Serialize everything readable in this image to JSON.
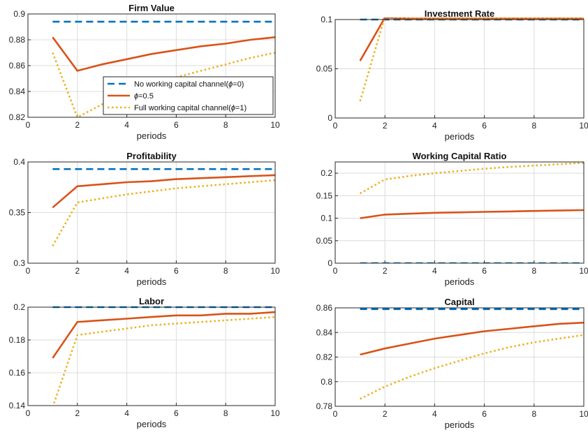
{
  "chart_data": [
    {
      "type": "line",
      "title": "Firm Value",
      "xlabel": "periods",
      "ylabel": "",
      "xlim": [
        0,
        10
      ],
      "ylim": [
        0.82,
        0.9
      ],
      "xticks": [
        "0",
        "2",
        "4",
        "6",
        "8",
        "10"
      ],
      "yticks": [
        "0.82",
        "0.84",
        "0.86",
        "0.88",
        "0.9"
      ],
      "grid": true,
      "legend": "bottom-right",
      "x": [
        1,
        2,
        3,
        4,
        5,
        6,
        7,
        8,
        9,
        10
      ],
      "series": [
        {
          "name": "No working capital channel(ϕ=0)",
          "values": [
            0.894,
            0.894,
            0.894,
            0.894,
            0.894,
            0.894,
            0.894,
            0.894,
            0.894,
            0.894
          ]
        },
        {
          "name": "ϕ=0.5",
          "values": [
            0.882,
            0.856,
            0.861,
            0.865,
            0.869,
            0.872,
            0.875,
            0.877,
            0.88,
            0.882
          ]
        },
        {
          "name": "Full working capital channel(ϕ=1)",
          "values": [
            0.87,
            0.82,
            0.83,
            0.839,
            0.846,
            0.851,
            0.856,
            0.861,
            0.866,
            0.87
          ]
        }
      ]
    },
    {
      "type": "line",
      "title": "Investment Rate",
      "xlabel": "periods",
      "ylabel": "",
      "xlim": [
        0,
        10
      ],
      "ylim": [
        0,
        0.1
      ],
      "xticks": [
        "0",
        "2",
        "4",
        "6",
        "8",
        "10"
      ],
      "yticks": [
        "0",
        "0.05",
        "0.1"
      ],
      "grid": true,
      "x": [
        1,
        2,
        3,
        4,
        5,
        6,
        7,
        8,
        9,
        10
      ],
      "series": [
        {
          "name": "No working capital channel(ϕ=0)",
          "values": [
            0.1,
            0.1,
            0.1,
            0.1,
            0.1,
            0.1,
            0.1,
            0.1,
            0.1,
            0.1
          ]
        },
        {
          "name": "ϕ=0.5",
          "values": [
            0.058,
            0.102,
            0.101,
            0.101,
            0.101,
            0.101,
            0.101,
            0.101,
            0.101,
            0.101
          ]
        },
        {
          "name": "Full working capital channel(ϕ=1)",
          "values": [
            0.017,
            0.103,
            0.102,
            0.102,
            0.102,
            0.102,
            0.102,
            0.102,
            0.102,
            0.102
          ]
        }
      ]
    },
    {
      "type": "line",
      "title": "Profitability",
      "xlabel": "periods",
      "ylabel": "",
      "xlim": [
        0,
        10
      ],
      "ylim": [
        0.3,
        0.4
      ],
      "xticks": [
        "0",
        "2",
        "4",
        "6",
        "8",
        "10"
      ],
      "yticks": [
        "0.3",
        "0.35",
        "0.4"
      ],
      "grid": true,
      "x": [
        1,
        2,
        3,
        4,
        5,
        6,
        7,
        8,
        9,
        10
      ],
      "series": [
        {
          "name": "No working capital channel(ϕ=0)",
          "values": [
            0.393,
            0.393,
            0.393,
            0.393,
            0.393,
            0.393,
            0.393,
            0.393,
            0.393,
            0.393
          ]
        },
        {
          "name": "ϕ=0.5",
          "values": [
            0.355,
            0.376,
            0.378,
            0.38,
            0.381,
            0.383,
            0.384,
            0.385,
            0.386,
            0.387
          ]
        },
        {
          "name": "Full working capital channel(ϕ=1)",
          "values": [
            0.317,
            0.36,
            0.364,
            0.368,
            0.371,
            0.374,
            0.376,
            0.378,
            0.38,
            0.382
          ]
        }
      ]
    },
    {
      "type": "line",
      "title": "Working Capital Ratio",
      "xlabel": "periods",
      "ylabel": "",
      "xlim": [
        0,
        10
      ],
      "ylim": [
        0,
        0.225
      ],
      "xticks": [
        "0",
        "2",
        "4",
        "6",
        "8",
        "10"
      ],
      "yticks": [
        "0",
        "0.05",
        "0.1",
        "0.15",
        "0.2"
      ],
      "grid": true,
      "x": [
        1,
        2,
        3,
        4,
        5,
        6,
        7,
        8,
        9,
        10
      ],
      "series": [
        {
          "name": "No working capital channel(ϕ=0)",
          "values": [
            0,
            0,
            0,
            0,
            0,
            0,
            0,
            0,
            0,
            0
          ]
        },
        {
          "name": "ϕ=0.5",
          "values": [
            0.1,
            0.108,
            0.11,
            0.112,
            0.113,
            0.114,
            0.115,
            0.116,
            0.117,
            0.118
          ]
        },
        {
          "name": "Full working capital channel(ϕ=1)",
          "values": [
            0.155,
            0.186,
            0.194,
            0.2,
            0.205,
            0.21,
            0.214,
            0.217,
            0.22,
            0.223
          ]
        }
      ]
    },
    {
      "type": "line",
      "title": "Labor",
      "xlabel": "periods",
      "ylabel": "",
      "xlim": [
        0,
        10
      ],
      "ylim": [
        0.14,
        0.2
      ],
      "xticks": [
        "0",
        "2",
        "4",
        "6",
        "8",
        "10"
      ],
      "yticks": [
        "0.14",
        "0.16",
        "0.18",
        "0.2"
      ],
      "grid": true,
      "x": [
        1,
        2,
        3,
        4,
        5,
        6,
        7,
        8,
        9,
        10
      ],
      "series": [
        {
          "name": "No working capital channel(ϕ=0)",
          "values": [
            0.2,
            0.2,
            0.2,
            0.2,
            0.2,
            0.2,
            0.2,
            0.2,
            0.2,
            0.2
          ]
        },
        {
          "name": "ϕ=0.5",
          "values": [
            0.169,
            0.191,
            0.192,
            0.193,
            0.194,
            0.195,
            0.195,
            0.196,
            0.196,
            0.197
          ]
        },
        {
          "name": "Full working capital channel(ϕ=1)",
          "values": [
            0.139,
            0.183,
            0.185,
            0.187,
            0.189,
            0.19,
            0.191,
            0.192,
            0.193,
            0.194
          ]
        }
      ]
    },
    {
      "type": "line",
      "title": "Capital",
      "xlabel": "periods",
      "ylabel": "",
      "xlim": [
        0,
        10
      ],
      "ylim": [
        0.78,
        0.86
      ],
      "xticks": [
        "0",
        "2",
        "4",
        "6",
        "8",
        "10"
      ],
      "yticks": [
        "0.78",
        "0.8",
        "0.82",
        "0.84",
        "0.86"
      ],
      "grid": true,
      "x": [
        1,
        2,
        3,
        4,
        5,
        6,
        7,
        8,
        9,
        10
      ],
      "series": [
        {
          "name": "No working capital channel(ϕ=0)",
          "values": [
            0.859,
            0.859,
            0.859,
            0.859,
            0.859,
            0.859,
            0.859,
            0.859,
            0.859,
            0.859
          ]
        },
        {
          "name": "ϕ=0.5",
          "values": [
            0.822,
            0.827,
            0.831,
            0.835,
            0.838,
            0.841,
            0.843,
            0.845,
            0.847,
            0.848
          ]
        },
        {
          "name": "Full working capital channel(ϕ=1)",
          "values": [
            0.786,
            0.796,
            0.804,
            0.811,
            0.817,
            0.823,
            0.828,
            0.832,
            0.835,
            0.838
          ]
        }
      ]
    }
  ],
  "legend": {
    "entries": [
      {
        "prefix": "No working capital channel(",
        "symbol": "ϕ",
        "suffix": "=0)"
      },
      {
        "prefix": "",
        "symbol": "ϕ",
        "suffix": "=0.5"
      },
      {
        "prefix": "Full working capital channel(",
        "symbol": "ϕ",
        "suffix": "=1)"
      }
    ]
  },
  "colors": {
    "series": [
      "#0072BD",
      "#D95319",
      "#EDB120"
    ],
    "grid": "#dcdcdc",
    "axis": "#262626"
  }
}
